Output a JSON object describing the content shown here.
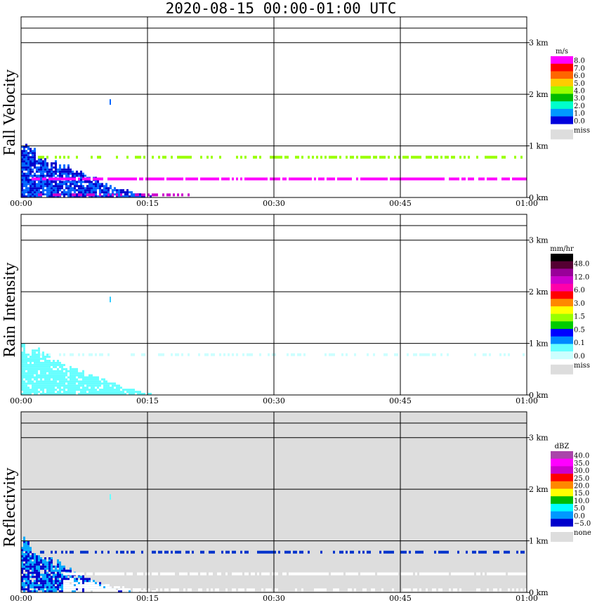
{
  "title": "2020-08-15   00:00-01:00 UTC",
  "colors": {
    "miss": "#dddddd",
    "background": "#ffffff",
    "grid": "#000000"
  },
  "chart_data": [
    {
      "type": "heatmap",
      "name": "Fall Velocity",
      "ylabel": "Fall Velocity",
      "x_ticks": [
        "00:00",
        "00:15",
        "00:30",
        "00:45",
        "01:00"
      ],
      "y_ticks": [
        "0 km",
        "1 km",
        "2 km",
        "3 km"
      ],
      "xlim": [
        "00:00",
        "01:00"
      ],
      "ylim_km": [
        0,
        3.5
      ],
      "grid": true,
      "background": "#ffffff",
      "colorbar": {
        "unit": "m/s",
        "labels": [
          "8.0",
          "7.0",
          "6.0",
          "5.0",
          "4.0",
          "3.0",
          "2.0",
          "1.0",
          "0.0"
        ],
        "colors": [
          "#ff00ff",
          "#ff0000",
          "#ff6600",
          "#ffcc00",
          "#99ff00",
          "#00bb00",
          "#00ffcc",
          "#0099ff",
          "#0000dd"
        ],
        "miss_label": "miss"
      },
      "features": [
        {
          "kind": "blob",
          "minute_start": 0,
          "minute_end": 15.5,
          "top_km": 0.95,
          "decay": 1.3,
          "color": "#0066ff",
          "color2": "#0000cc"
        },
        {
          "kind": "band",
          "minute_start": 2,
          "minute_end": 60,
          "height_km": 0.78,
          "color": "#99ff00",
          "density": 0.45
        },
        {
          "kind": "band",
          "minute_start": 1,
          "minute_end": 60,
          "height_km": 0.36,
          "color": "#ff00ff",
          "density": 0.85
        },
        {
          "kind": "band",
          "minute_start": 2,
          "minute_end": 20,
          "height_km": 0.05,
          "color": "#cc00cc",
          "density": 0.5
        },
        {
          "kind": "dot",
          "minute": 10.5,
          "height_km": 1.85,
          "color": "#0066ff"
        }
      ]
    },
    {
      "type": "heatmap",
      "name": "Rain Intensity",
      "ylabel": "Rain Intensity",
      "x_ticks": [
        "00:00",
        "00:15",
        "00:30",
        "00:45",
        "01:00"
      ],
      "y_ticks": [
        "0 km",
        "1 km",
        "2 km",
        "3 km"
      ],
      "xlim": [
        "00:00",
        "01:00"
      ],
      "ylim_km": [
        0,
        3.5
      ],
      "grid": true,
      "background": "#ffffff",
      "colorbar": {
        "unit": "mm/hr",
        "labels": [
          "48.0",
          "12.0",
          "6.0",
          "3.0",
          "1.5",
          "0.5",
          "0.1",
          "0.0"
        ],
        "colors": [
          "#000000",
          "#550033",
          "#990099",
          "#cc00cc",
          "#ff00aa",
          "#ff0000",
          "#ff8800",
          "#ffff00",
          "#99ff00",
          "#00cc00",
          "#0000ff",
          "#0088ff",
          "#66ffff",
          "#ccffff"
        ],
        "miss_label": "miss"
      },
      "features": [
        {
          "kind": "blob",
          "minute_start": 0,
          "minute_end": 15.5,
          "top_km": 0.95,
          "decay": 1.3,
          "color": "#66ffff",
          "color2": "#66ffff"
        },
        {
          "kind": "band",
          "minute_start": 2,
          "minute_end": 60,
          "height_km": 0.78,
          "color": "#ccffff",
          "density": 0.35
        },
        {
          "kind": "dot",
          "minute": 10.5,
          "height_km": 1.85,
          "color": "#33ccff"
        }
      ]
    },
    {
      "type": "heatmap",
      "name": "Reflectivity",
      "ylabel": "Reflectivity",
      "x_ticks": [
        "00:00",
        "00:15",
        "00:30",
        "00:45",
        "01:00"
      ],
      "y_ticks": [
        "0 km",
        "1 km",
        "2 km",
        "3 km"
      ],
      "xlim": [
        "00:00",
        "01:00"
      ],
      "ylim_km": [
        0,
        3.5
      ],
      "grid": true,
      "background": "#dddddd",
      "colorbar": {
        "unit": "dBZ",
        "labels": [
          "40.0",
          "35.0",
          "30.0",
          "25.0",
          "20.0",
          "15.0",
          "10.0",
          "5.0",
          "0.0",
          "−5.0"
        ],
        "colors": [
          "#aa44aa",
          "#ff00ff",
          "#cc00cc",
          "#ff0000",
          "#ff8800",
          "#ffff00",
          "#00bb00",
          "#00ffff",
          "#0099ff",
          "#0000cc"
        ],
        "miss_label": "none"
      },
      "features": [
        {
          "kind": "blob",
          "minute_start": 0,
          "minute_end": 13,
          "top_km": 0.95,
          "decay": 1.4,
          "color": "#0000cc",
          "color2": "#00aaff"
        },
        {
          "kind": "band",
          "minute_start": 2,
          "minute_end": 60,
          "height_km": 0.78,
          "color": "#0033cc",
          "density": 0.5
        },
        {
          "kind": "band",
          "minute_start": 5,
          "minute_end": 60,
          "height_km": 0.36,
          "color": "#ffffff",
          "density": 0.8
        },
        {
          "kind": "band",
          "minute_start": 10,
          "minute_end": 60,
          "height_km": 0.05,
          "color": "#ffffff",
          "density": 0.45
        },
        {
          "kind": "blob",
          "minute_start": 5,
          "minute_end": 16,
          "top_km": 0.25,
          "decay": 1.0,
          "color": "#ffffff",
          "color2": "#ffffff"
        },
        {
          "kind": "dot",
          "minute": 10.5,
          "height_km": 1.85,
          "color": "#66ffff"
        }
      ]
    }
  ]
}
